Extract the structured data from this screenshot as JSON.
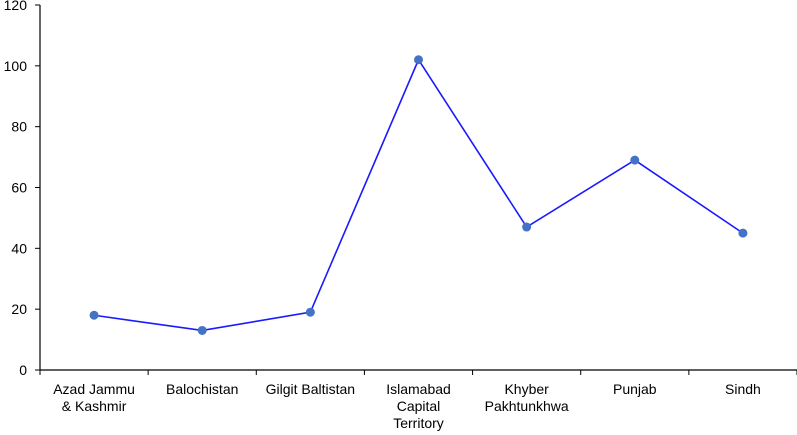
{
  "chart_data": {
    "type": "line",
    "categories": [
      [
        "Azad Jammu",
        "& Kashmir"
      ],
      [
        "Balochistan"
      ],
      [
        "Gilgit Baltistan"
      ],
      [
        "Islamabad",
        "Capital",
        "Territory"
      ],
      [
        "Khyber",
        "Pakhtunkhwa"
      ],
      [
        "Punjab"
      ],
      [
        "Sindh"
      ]
    ],
    "values": [
      18,
      13,
      19,
      102,
      47,
      69,
      45
    ],
    "ylim": [
      0,
      120
    ],
    "yticks": [
      "0",
      "20",
      "40",
      "60",
      "80",
      "100",
      "120"
    ],
    "title": "",
    "xlabel": "",
    "ylabel": "",
    "grid": false,
    "line_color": "#1a1aff",
    "marker_color": "#4472c4"
  }
}
